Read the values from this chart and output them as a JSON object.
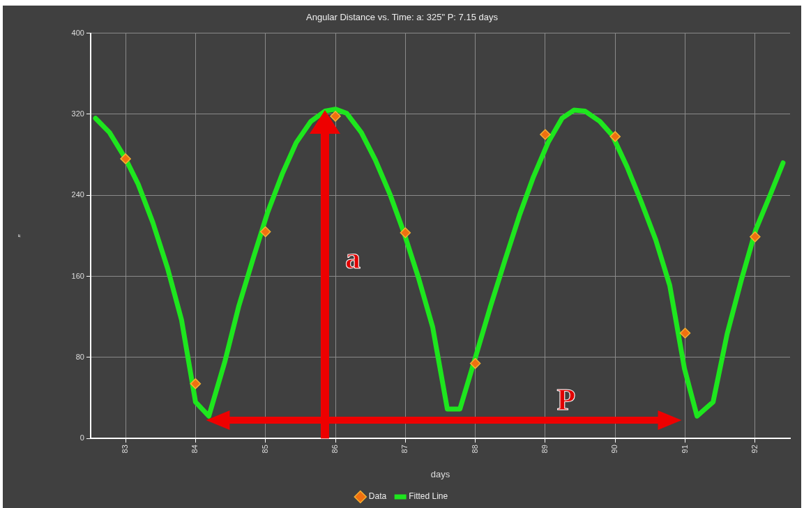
{
  "chart_data": {
    "type": "line",
    "title": "Angular Distance vs. Time: a: 325\" P: 7.15 days",
    "xlabel": "days",
    "ylabel": "″",
    "xlim": [
      82.5,
      92.5
    ],
    "xticks": [
      83,
      84,
      85,
      86,
      87,
      88,
      89,
      90,
      91,
      92
    ],
    "ylim": [
      0,
      400
    ],
    "yticks": [
      0,
      80,
      160,
      240,
      320,
      400
    ],
    "grid": true,
    "legend": "bottom",
    "series": [
      {
        "name": "Fitted Line",
        "color": "#1ee61e",
        "marker": "none",
        "line_style": "solid",
        "x": [
          82.57,
          82.77,
          83.0,
          83.18,
          83.39,
          83.6,
          83.8,
          84.0,
          84.19,
          84.42,
          84.62,
          84.83,
          85.03,
          85.24,
          85.44,
          85.65,
          85.85,
          86.0,
          86.16,
          86.37,
          86.57,
          86.78,
          86.98,
          87.19,
          87.39,
          87.6,
          87.78,
          88.01,
          88.22,
          88.42,
          88.63,
          88.83,
          89.04,
          89.24,
          89.41,
          89.57,
          89.78,
          89.96,
          90.17,
          90.37,
          90.58,
          90.78,
          90.99,
          91.17,
          91.4,
          91.6,
          91.81,
          92.01,
          92.22,
          92.4
        ],
        "values": [
          316,
          302,
          276,
          251,
          213,
          168,
          117,
          36,
          22,
          76,
          131,
          179,
          223,
          261,
          292,
          313,
          323,
          325,
          321,
          302,
          275,
          241,
          203,
          158,
          110,
          29,
          29,
          82,
          131,
          175,
          220,
          258,
          292,
          316,
          324,
          323,
          313,
          299,
          268,
          234,
          196,
          151,
          69,
          22,
          36,
          103,
          158,
          206,
          241,
          272
        ]
      },
      {
        "name": "Data",
        "type": "scatter",
        "color": "#f07010",
        "marker": "diamond",
        "x": [
          83,
          84,
          85,
          86,
          87,
          88,
          89,
          90,
          91,
          92
        ],
        "values": [
          276,
          54,
          204,
          318,
          203,
          74,
          300,
          298,
          104,
          199
        ]
      }
    ],
    "annotations": [
      "a",
      "P"
    ]
  }
}
